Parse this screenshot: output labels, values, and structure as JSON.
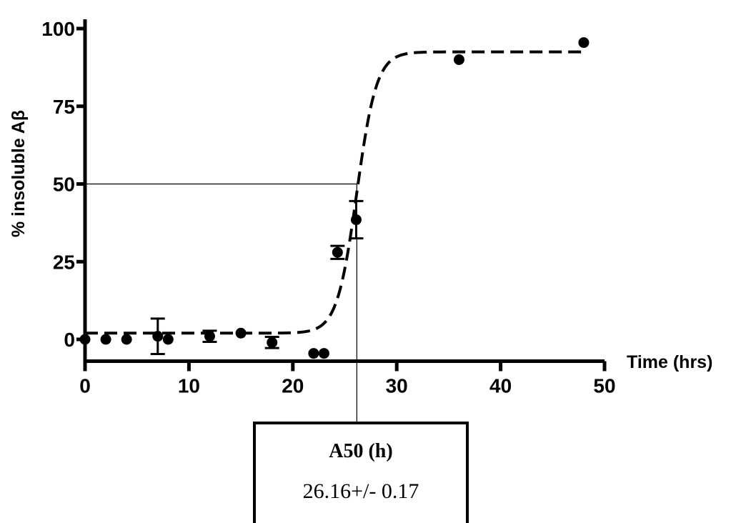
{
  "chart_data": {
    "type": "scatter",
    "xlabel": "Time (hrs)",
    "ylabel": "% insoluble Aβ",
    "xlim": [
      0,
      50
    ],
    "ylim": [
      -7,
      103
    ],
    "xticks": [
      0,
      10,
      20,
      30,
      40,
      50
    ],
    "yticks": [
      0,
      25,
      50,
      75,
      100
    ],
    "xtick_labels": [
      "0",
      "10",
      "20",
      "30",
      "40",
      "50"
    ],
    "ytick_labels": [
      "0",
      "25",
      "50",
      "75",
      "100"
    ],
    "grid": false,
    "points": [
      {
        "x": 0,
        "y": 0,
        "err": null
      },
      {
        "x": 2,
        "y": 0,
        "err": null
      },
      {
        "x": 4,
        "y": 0,
        "err": null
      },
      {
        "x": 7,
        "y": 1,
        "err": 5.7
      },
      {
        "x": 8,
        "y": 0,
        "err": null
      },
      {
        "x": 12,
        "y": 1,
        "err": 1.8
      },
      {
        "x": 15,
        "y": 2,
        "err": null
      },
      {
        "x": 18,
        "y": -1,
        "err": 1.8
      },
      {
        "x": 22,
        "y": -4.5,
        "err": null
      },
      {
        "x": 23,
        "y": -4.5,
        "err": null
      },
      {
        "x": 24.3,
        "y": 28,
        "err": 2.1
      },
      {
        "x": 26.1,
        "y": 38.5,
        "err": 6
      },
      {
        "x": 36,
        "y": 90,
        "err": null
      },
      {
        "x": 48,
        "y": 95.5,
        "err": null
      }
    ],
    "fit": {
      "style": "dashed",
      "bottom": 2,
      "top": 92.5,
      "x50": 26.16,
      "slope": 1.05,
      "x_start": 0,
      "x_end": 48
    },
    "reference_lines": {
      "y": 50,
      "x": 26.16
    },
    "annotation": {
      "title": "A50 (h)",
      "value": "26.16+/- 0.17"
    }
  }
}
